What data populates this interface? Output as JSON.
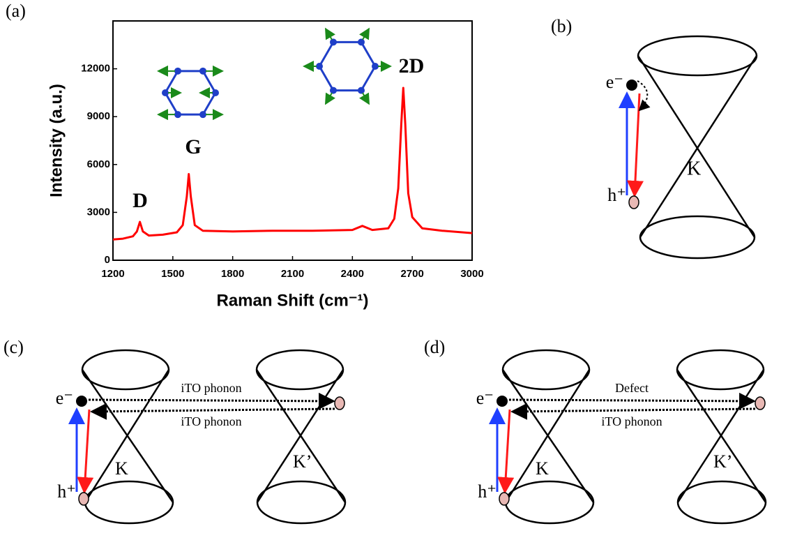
{
  "chart_data": {
    "type": "line",
    "panel_label": "(a)",
    "x_label": "Raman Shift (cm⁻¹)",
    "y_label": "Intensity (a.u.)",
    "xlim": [
      1200,
      3000
    ],
    "xticks": [
      1200,
      1500,
      1800,
      2100,
      2400,
      2700,
      3000
    ],
    "ylim": [
      0,
      15000
    ],
    "yticks": [
      0,
      3000,
      6000,
      9000,
      12000
    ],
    "peak_labels": [
      "D",
      "G",
      "2D"
    ],
    "x": [
      1200,
      1250,
      1300,
      1320,
      1335,
      1350,
      1380,
      1450,
      1520,
      1550,
      1570,
      1580,
      1590,
      1610,
      1650,
      1800,
      2000,
      2200,
      2400,
      2450,
      2500,
      2580,
      2610,
      2630,
      2645,
      2655,
      2665,
      2680,
      2700,
      2750,
      2850,
      3000
    ],
    "series": [
      {
        "color": "#ff0000",
        "values": [
          1300,
          1350,
          1500,
          1800,
          2400,
          1800,
          1550,
          1600,
          1750,
          2200,
          4000,
          5400,
          4000,
          2200,
          1850,
          1800,
          1850,
          1850,
          1900,
          2150,
          1900,
          2000,
          2600,
          4500,
          8500,
          10800,
          8500,
          4200,
          2700,
          2000,
          1850,
          1700
        ]
      }
    ]
  },
  "diagrams": {
    "b": {
      "label": "(b)",
      "electron": "e⁻",
      "hole": "h⁺",
      "valley": "K"
    },
    "c": {
      "label": "(c)",
      "electron": "e⁻",
      "hole": "h⁺",
      "valley": "K",
      "valley2": "K’",
      "top_arrow": "iTO phonon",
      "bottom_arrow": "iTO phonon"
    },
    "d": {
      "label": "(d)",
      "electron": "e⁻",
      "hole": "h⁺",
      "valley": "K",
      "valley2": "K’",
      "top_arrow": "Defect",
      "bottom_arrow": "iTO phonon"
    }
  }
}
